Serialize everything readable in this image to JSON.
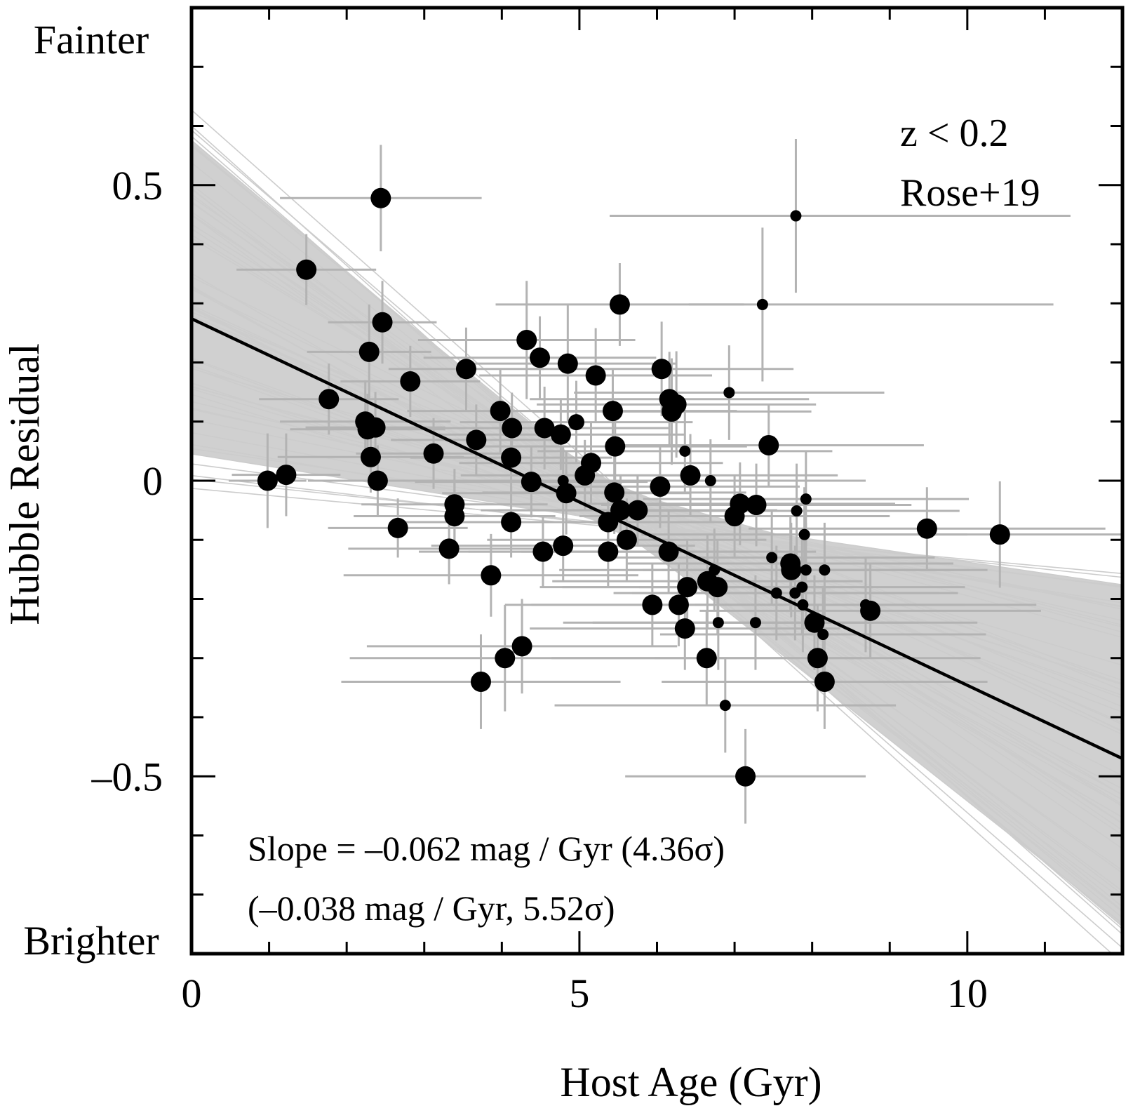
{
  "chart_data": {
    "type": "scatter",
    "title": "",
    "xlabel": "Host Age (Gyr)",
    "ylabel": "Hubble Residual",
    "xlim": [
      0,
      12
    ],
    "ylim": [
      -0.8,
      0.8
    ],
    "grid": false,
    "x_major_ticks": [
      0,
      5,
      10
    ],
    "x_tick_labels": [
      "0",
      "5",
      "10"
    ],
    "x_minor_ticks": [
      1,
      2,
      3,
      4,
      6,
      7,
      8,
      9,
      11
    ],
    "y_major_ticks": [
      0.5,
      0,
      -0.5
    ],
    "y_tick_labels": [
      "0.5",
      "0",
      "–0.5"
    ],
    "y_minor_ticks": [
      0.7,
      0.6,
      0.4,
      0.3,
      0.2,
      0.1,
      -0.1,
      -0.2,
      -0.3,
      -0.4,
      -0.6,
      -0.7
    ],
    "side_labels": {
      "top": "Fainter",
      "bottom": "Brighter"
    },
    "legend": {
      "lines": [
        "z < 0.2",
        "Rose+19"
      ],
      "placement": "top-right"
    },
    "annotations": [
      "Slope = –0.062 mag / Gyr (4.36σ)",
      "(–0.038 mag / Gyr, 5.52σ)"
    ],
    "fit_line": {
      "slope": -0.062,
      "intercept": 0.274,
      "color": "#000000"
    },
    "posterior_band": {
      "color": "#d0d0d0",
      "line_color": "#cccccc",
      "slope_range": [
        -0.118,
        -0.012
      ],
      "intercept_at_slope_min": 0.6,
      "intercept_at_slope_max": 0.02,
      "n_lines": 60
    },
    "marker_color": "#000000",
    "errorbar_color": "#b3b3b3",
    "points": [
      {
        "x": 0.98,
        "y": 0.0,
        "size": "large",
        "xerr": [
          0.5,
          0.5
        ],
        "yerr": 0.08
      },
      {
        "x": 1.22,
        "y": 0.01,
        "size": "large",
        "xerr": [
          0.7,
          0.7
        ],
        "yerr": 0.07
      },
      {
        "x": 1.48,
        "y": 0.357,
        "size": "large",
        "xerr": [
          0.9,
          0.9
        ],
        "yerr": 0.06
      },
      {
        "x": 1.77,
        "y": 0.138,
        "size": "large",
        "xerr": [
          0.9,
          0.9
        ],
        "yerr": 0.06
      },
      {
        "x": 2.44,
        "y": 0.478,
        "size": "large",
        "xerr": [
          1.3,
          1.3
        ],
        "yerr": 0.09
      },
      {
        "x": 2.29,
        "y": 0.218,
        "size": "large",
        "xerr": [
          0.8,
          0.8
        ],
        "yerr": 0.08
      },
      {
        "x": 2.46,
        "y": 0.268,
        "size": "large",
        "xerr": [
          0.7,
          0.7
        ],
        "yerr": 0.07
      },
      {
        "x": 2.82,
        "y": 0.168,
        "size": "large",
        "xerr": [
          0.9,
          0.9
        ],
        "yerr": 0.06
      },
      {
        "x": 2.24,
        "y": 0.1,
        "size": "large",
        "xerr": [
          1.1,
          1.1
        ],
        "yerr": 0.07
      },
      {
        "x": 2.27,
        "y": 0.087,
        "size": "large",
        "xerr": [
          1.0,
          1.0
        ],
        "yerr": 0.06
      },
      {
        "x": 2.37,
        "y": 0.09,
        "size": "large",
        "xerr": [
          0.9,
          0.9
        ],
        "yerr": 0.06
      },
      {
        "x": 2.31,
        "y": 0.04,
        "size": "large",
        "xerr": [
          1.2,
          1.2
        ],
        "yerr": 0.06
      },
      {
        "x": 2.4,
        "y": 0.0,
        "size": "large",
        "xerr": [
          0.9,
          0.9
        ],
        "yerr": 0.06
      },
      {
        "x": 2.66,
        "y": -0.08,
        "size": "large",
        "xerr": [
          0.9,
          0.9
        ],
        "yerr": 0.05
      },
      {
        "x": 3.12,
        "y": 0.046,
        "size": "large",
        "xerr": [
          1.0,
          1.0
        ],
        "yerr": 0.06
      },
      {
        "x": 3.32,
        "y": -0.115,
        "size": "large",
        "xerr": [
          1.3,
          1.3
        ],
        "yerr": 0.06
      },
      {
        "x": 3.39,
        "y": -0.04,
        "size": "large",
        "xerr": [
          1.2,
          1.2
        ],
        "yerr": 0.06
      },
      {
        "x": 3.39,
        "y": -0.06,
        "size": "large",
        "xerr": [
          1.3,
          1.3
        ],
        "yerr": 0.06
      },
      {
        "x": 3.54,
        "y": 0.189,
        "size": "large",
        "xerr": [
          1.0,
          1.0
        ],
        "yerr": 0.07
      },
      {
        "x": 3.67,
        "y": 0.069,
        "size": "large",
        "xerr": [
          1.1,
          1.1
        ],
        "yerr": 0.06
      },
      {
        "x": 3.73,
        "y": -0.34,
        "size": "large",
        "xerr": [
          1.8,
          1.8
        ],
        "yerr": 0.08
      },
      {
        "x": 3.86,
        "y": -0.16,
        "size": "large",
        "xerr": [
          1.9,
          1.9
        ],
        "yerr": 0.07
      },
      {
        "x": 3.98,
        "y": 0.118,
        "size": "large",
        "xerr": [
          1.2,
          1.2
        ],
        "yerr": 0.07
      },
      {
        "x": 4.04,
        "y": -0.3,
        "size": "large",
        "xerr": [
          2.0,
          2.0
        ],
        "yerr": 0.09
      },
      {
        "x": 4.12,
        "y": 0.039,
        "size": "large",
        "xerr": [
          1.3,
          1.3
        ],
        "yerr": 0.06
      },
      {
        "x": 4.12,
        "y": -0.07,
        "size": "large",
        "xerr": [
          1.5,
          1.5
        ],
        "yerr": 0.06
      },
      {
        "x": 4.13,
        "y": 0.089,
        "size": "large",
        "xerr": [
          1.4,
          1.4
        ],
        "yerr": 0.06
      },
      {
        "x": 4.26,
        "y": -0.28,
        "size": "large",
        "xerr": [
          2.0,
          2.0
        ],
        "yerr": 0.08
      },
      {
        "x": 4.32,
        "y": 0.238,
        "size": "large",
        "xerr": [
          1.4,
          1.4
        ],
        "yerr": 0.1
      },
      {
        "x": 4.38,
        "y": -0.002,
        "size": "large",
        "xerr": [
          1.5,
          1.5
        ],
        "yerr": 0.06
      },
      {
        "x": 4.49,
        "y": 0.208,
        "size": "large",
        "xerr": [
          1.5,
          1.5
        ],
        "yerr": 0.07
      },
      {
        "x": 4.53,
        "y": -0.12,
        "size": "large",
        "xerr": [
          1.6,
          1.6
        ],
        "yerr": 0.06
      },
      {
        "x": 4.55,
        "y": 0.089,
        "size": "large",
        "xerr": [
          1.6,
          1.6
        ],
        "yerr": 0.07
      },
      {
        "x": 4.76,
        "y": 0.078,
        "size": "large",
        "xerr": [
          1.6,
          1.6
        ],
        "yerr": 0.06
      },
      {
        "x": 4.79,
        "y": -0.11,
        "size": "large",
        "xerr": [
          1.7,
          1.7
        ],
        "yerr": 0.06
      },
      {
        "x": 4.79,
        "y": 0.0,
        "size": "small",
        "xerr": [
          1.5,
          1.5
        ],
        "yerr": 0.06
      },
      {
        "x": 4.83,
        "y": -0.021,
        "size": "large",
        "xerr": [
          1.6,
          1.6
        ],
        "yerr": 0.07
      },
      {
        "x": 4.85,
        "y": 0.198,
        "size": "large",
        "xerr": [
          1.4,
          1.4
        ],
        "yerr": 0.1
      },
      {
        "x": 4.96,
        "y": 0.099,
        "size": "medium",
        "xerr": [
          1.5,
          1.5
        ],
        "yerr": 0.07
      },
      {
        "x": 5.07,
        "y": 0.009,
        "size": "large",
        "xerr": [
          1.6,
          1.6
        ],
        "yerr": 0.06
      },
      {
        "x": 5.15,
        "y": 0.03,
        "size": "large",
        "xerr": [
          1.7,
          1.7
        ],
        "yerr": 0.07
      },
      {
        "x": 5.21,
        "y": 0.178,
        "size": "large",
        "xerr": [
          1.5,
          1.5
        ],
        "yerr": 0.08
      },
      {
        "x": 5.37,
        "y": -0.07,
        "size": "large",
        "xerr": [
          1.7,
          1.7
        ],
        "yerr": 0.06
      },
      {
        "x": 5.37,
        "y": -0.12,
        "size": "large",
        "xerr": [
          1.8,
          1.8
        ],
        "yerr": 0.06
      },
      {
        "x": 5.43,
        "y": 0.118,
        "size": "large",
        "xerr": [
          1.6,
          1.6
        ],
        "yerr": 0.07
      },
      {
        "x": 5.45,
        "y": -0.02,
        "size": "large",
        "xerr": [
          1.7,
          1.7
        ],
        "yerr": 0.07
      },
      {
        "x": 5.46,
        "y": 0.058,
        "size": "large",
        "xerr": [
          1.7,
          1.7
        ],
        "yerr": 0.07
      },
      {
        "x": 5.52,
        "y": 0.298,
        "size": "large",
        "xerr": [
          1.6,
          1.6
        ],
        "yerr": 0.07
      },
      {
        "x": 5.53,
        "y": -0.05,
        "size": "large",
        "xerr": [
          1.8,
          1.8
        ],
        "yerr": 0.06
      },
      {
        "x": 5.61,
        "y": -0.1,
        "size": "large",
        "xerr": [
          1.8,
          1.8
        ],
        "yerr": 0.07
      },
      {
        "x": 5.75,
        "y": -0.05,
        "size": "large",
        "xerr": [
          1.8,
          1.8
        ],
        "yerr": 0.06
      },
      {
        "x": 5.94,
        "y": -0.21,
        "size": "large",
        "xerr": [
          1.9,
          1.9
        ],
        "yerr": 0.07
      },
      {
        "x": 6.04,
        "y": -0.01,
        "size": "large",
        "xerr": [
          1.8,
          1.8
        ],
        "yerr": 0.07
      },
      {
        "x": 6.06,
        "y": 0.189,
        "size": "large",
        "xerr": [
          1.7,
          1.7
        ],
        "yerr": 0.08
      },
      {
        "x": 6.15,
        "y": -0.12,
        "size": "large",
        "xerr": [
          1.9,
          1.9
        ],
        "yerr": 0.07
      },
      {
        "x": 6.16,
        "y": 0.138,
        "size": "large",
        "xerr": [
          1.8,
          1.8
        ],
        "yerr": 0.08
      },
      {
        "x": 6.19,
        "y": 0.117,
        "size": "large",
        "xerr": [
          1.8,
          1.8
        ],
        "yerr": 0.09
      },
      {
        "x": 6.25,
        "y": 0.129,
        "size": "large",
        "xerr": [
          1.8,
          1.8
        ],
        "yerr": 0.09
      },
      {
        "x": 6.28,
        "y": -0.21,
        "size": "large",
        "xerr": [
          1.9,
          1.9
        ],
        "yerr": 0.07
      },
      {
        "x": 6.36,
        "y": 0.05,
        "size": "small",
        "xerr": [
          1.9,
          1.9
        ],
        "yerr": 0.07
      },
      {
        "x": 6.36,
        "y": -0.25,
        "size": "large",
        "xerr": [
          2.0,
          2.0
        ],
        "yerr": 0.07
      },
      {
        "x": 6.39,
        "y": -0.18,
        "size": "large",
        "xerr": [
          1.9,
          1.9
        ],
        "yerr": 0.08
      },
      {
        "x": 6.43,
        "y": 0.009,
        "size": "large",
        "xerr": [
          1.9,
          1.9
        ],
        "yerr": 0.07
      },
      {
        "x": 6.64,
        "y": -0.3,
        "size": "large",
        "xerr": [
          2.0,
          2.0
        ],
        "yerr": 0.08
      },
      {
        "x": 6.65,
        "y": -0.17,
        "size": "large",
        "xerr": [
          2.0,
          2.0
        ],
        "yerr": 0.08
      },
      {
        "x": 6.69,
        "y": 0.0,
        "size": "small",
        "xerr": [
          2.0,
          2.0
        ],
        "yerr": 0.07
      },
      {
        "x": 6.74,
        "y": -0.151,
        "size": "small",
        "xerr": [
          2.0,
          2.0
        ],
        "yerr": 0.07
      },
      {
        "x": 6.78,
        "y": -0.18,
        "size": "large",
        "xerr": [
          2.0,
          2.0
        ],
        "yerr": 0.08
      },
      {
        "x": 6.79,
        "y": -0.24,
        "size": "small",
        "xerr": [
          2.0,
          2.0
        ],
        "yerr": 0.08
      },
      {
        "x": 6.88,
        "y": -0.38,
        "size": "small",
        "xerr": [
          2.2,
          2.2
        ],
        "yerr": 0.08
      },
      {
        "x": 6.93,
        "y": 0.149,
        "size": "small",
        "xerr": [
          2.0,
          2.0
        ],
        "yerr": 0.08
      },
      {
        "x": 7.0,
        "y": -0.06,
        "size": "large",
        "xerr": [
          2.0,
          2.0
        ],
        "yerr": 0.07
      },
      {
        "x": 7.07,
        "y": -0.039,
        "size": "large",
        "xerr": [
          2.0,
          2.0
        ],
        "yerr": 0.07
      },
      {
        "x": 7.14,
        "y": -0.5,
        "size": "large",
        "xerr": [
          1.55,
          1.55
        ],
        "yerr": 0.08
      },
      {
        "x": 7.27,
        "y": -0.24,
        "size": "small",
        "xerr": [
          2.1,
          2.1
        ],
        "yerr": 0.08
      },
      {
        "x": 7.28,
        "y": -0.041,
        "size": "large",
        "xerr": [
          2.0,
          2.0
        ],
        "yerr": 0.07
      },
      {
        "x": 7.36,
        "y": 0.298,
        "size": "small",
        "xerr": [
          0.95,
          3.75
        ],
        "yerr": 0.13
      },
      {
        "x": 7.44,
        "y": 0.06,
        "size": "large",
        "xerr": [
          2.0,
          2.0
        ],
        "yerr": 0.07
      },
      {
        "x": 7.48,
        "y": -0.13,
        "size": "small",
        "xerr": [
          2.1,
          2.1
        ],
        "yerr": 0.08
      },
      {
        "x": 7.54,
        "y": -0.19,
        "size": "small",
        "xerr": [
          2.1,
          2.1
        ],
        "yerr": 0.08
      },
      {
        "x": 7.72,
        "y": -0.14,
        "size": "large",
        "xerr": [
          2.1,
          2.1
        ],
        "yerr": 0.08
      },
      {
        "x": 7.73,
        "y": -0.151,
        "size": "large",
        "xerr": [
          2.1,
          2.1
        ],
        "yerr": 0.08
      },
      {
        "x": 7.78,
        "y": -0.19,
        "size": "small",
        "xerr": [
          2.1,
          2.1
        ],
        "yerr": 0.08
      },
      {
        "x": 7.79,
        "y": 0.448,
        "size": "small",
        "xerr": [
          2.4,
          3.54
        ],
        "yerr": 0.13
      },
      {
        "x": 7.8,
        "y": -0.051,
        "size": "small",
        "xerr": [
          2.1,
          2.1
        ],
        "yerr": 0.08
      },
      {
        "x": 7.87,
        "y": -0.18,
        "size": "small",
        "xerr": [
          2.1,
          2.1
        ],
        "yerr": 0.08
      },
      {
        "x": 7.88,
        "y": -0.21,
        "size": "small",
        "xerr": [
          2.1,
          2.1
        ],
        "yerr": 0.08
      },
      {
        "x": 7.9,
        "y": -0.091,
        "size": "small",
        "xerr": [
          2.1,
          2.1
        ],
        "yerr": 0.08
      },
      {
        "x": 7.92,
        "y": -0.031,
        "size": "small",
        "xerr": [
          2.1,
          2.1
        ],
        "yerr": 0.08
      },
      {
        "x": 7.92,
        "y": -0.151,
        "size": "small",
        "xerr": [
          2.1,
          2.1
        ],
        "yerr": 0.08
      },
      {
        "x": 8.03,
        "y": -0.24,
        "size": "large",
        "xerr": [
          2.1,
          2.1
        ],
        "yerr": 0.08
      },
      {
        "x": 8.07,
        "y": -0.3,
        "size": "large",
        "xerr": [
          2.1,
          2.1
        ],
        "yerr": 0.09
      },
      {
        "x": 8.14,
        "y": -0.26,
        "size": "small",
        "xerr": [
          2.1,
          2.1
        ],
        "yerr": 0.08
      },
      {
        "x": 8.16,
        "y": -0.151,
        "size": "small",
        "xerr": [
          2.1,
          2.1
        ],
        "yerr": 0.08
      },
      {
        "x": 8.16,
        "y": -0.34,
        "size": "large",
        "xerr": [
          2.1,
          2.1
        ],
        "yerr": 0.08
      },
      {
        "x": 8.69,
        "y": -0.21,
        "size": "small",
        "xerr": [
          2.2,
          2.2
        ],
        "yerr": 0.08
      },
      {
        "x": 8.75,
        "y": -0.22,
        "size": "large",
        "xerr": [
          2.2,
          2.2
        ],
        "yerr": 0.08
      },
      {
        "x": 9.48,
        "y": -0.081,
        "size": "large",
        "xerr": [
          2.3,
          2.3
        ],
        "yerr": 0.07
      },
      {
        "x": 10.42,
        "y": -0.091,
        "size": "large",
        "xerr": [
          2.5,
          2.5
        ],
        "yerr": 0.09
      }
    ]
  }
}
